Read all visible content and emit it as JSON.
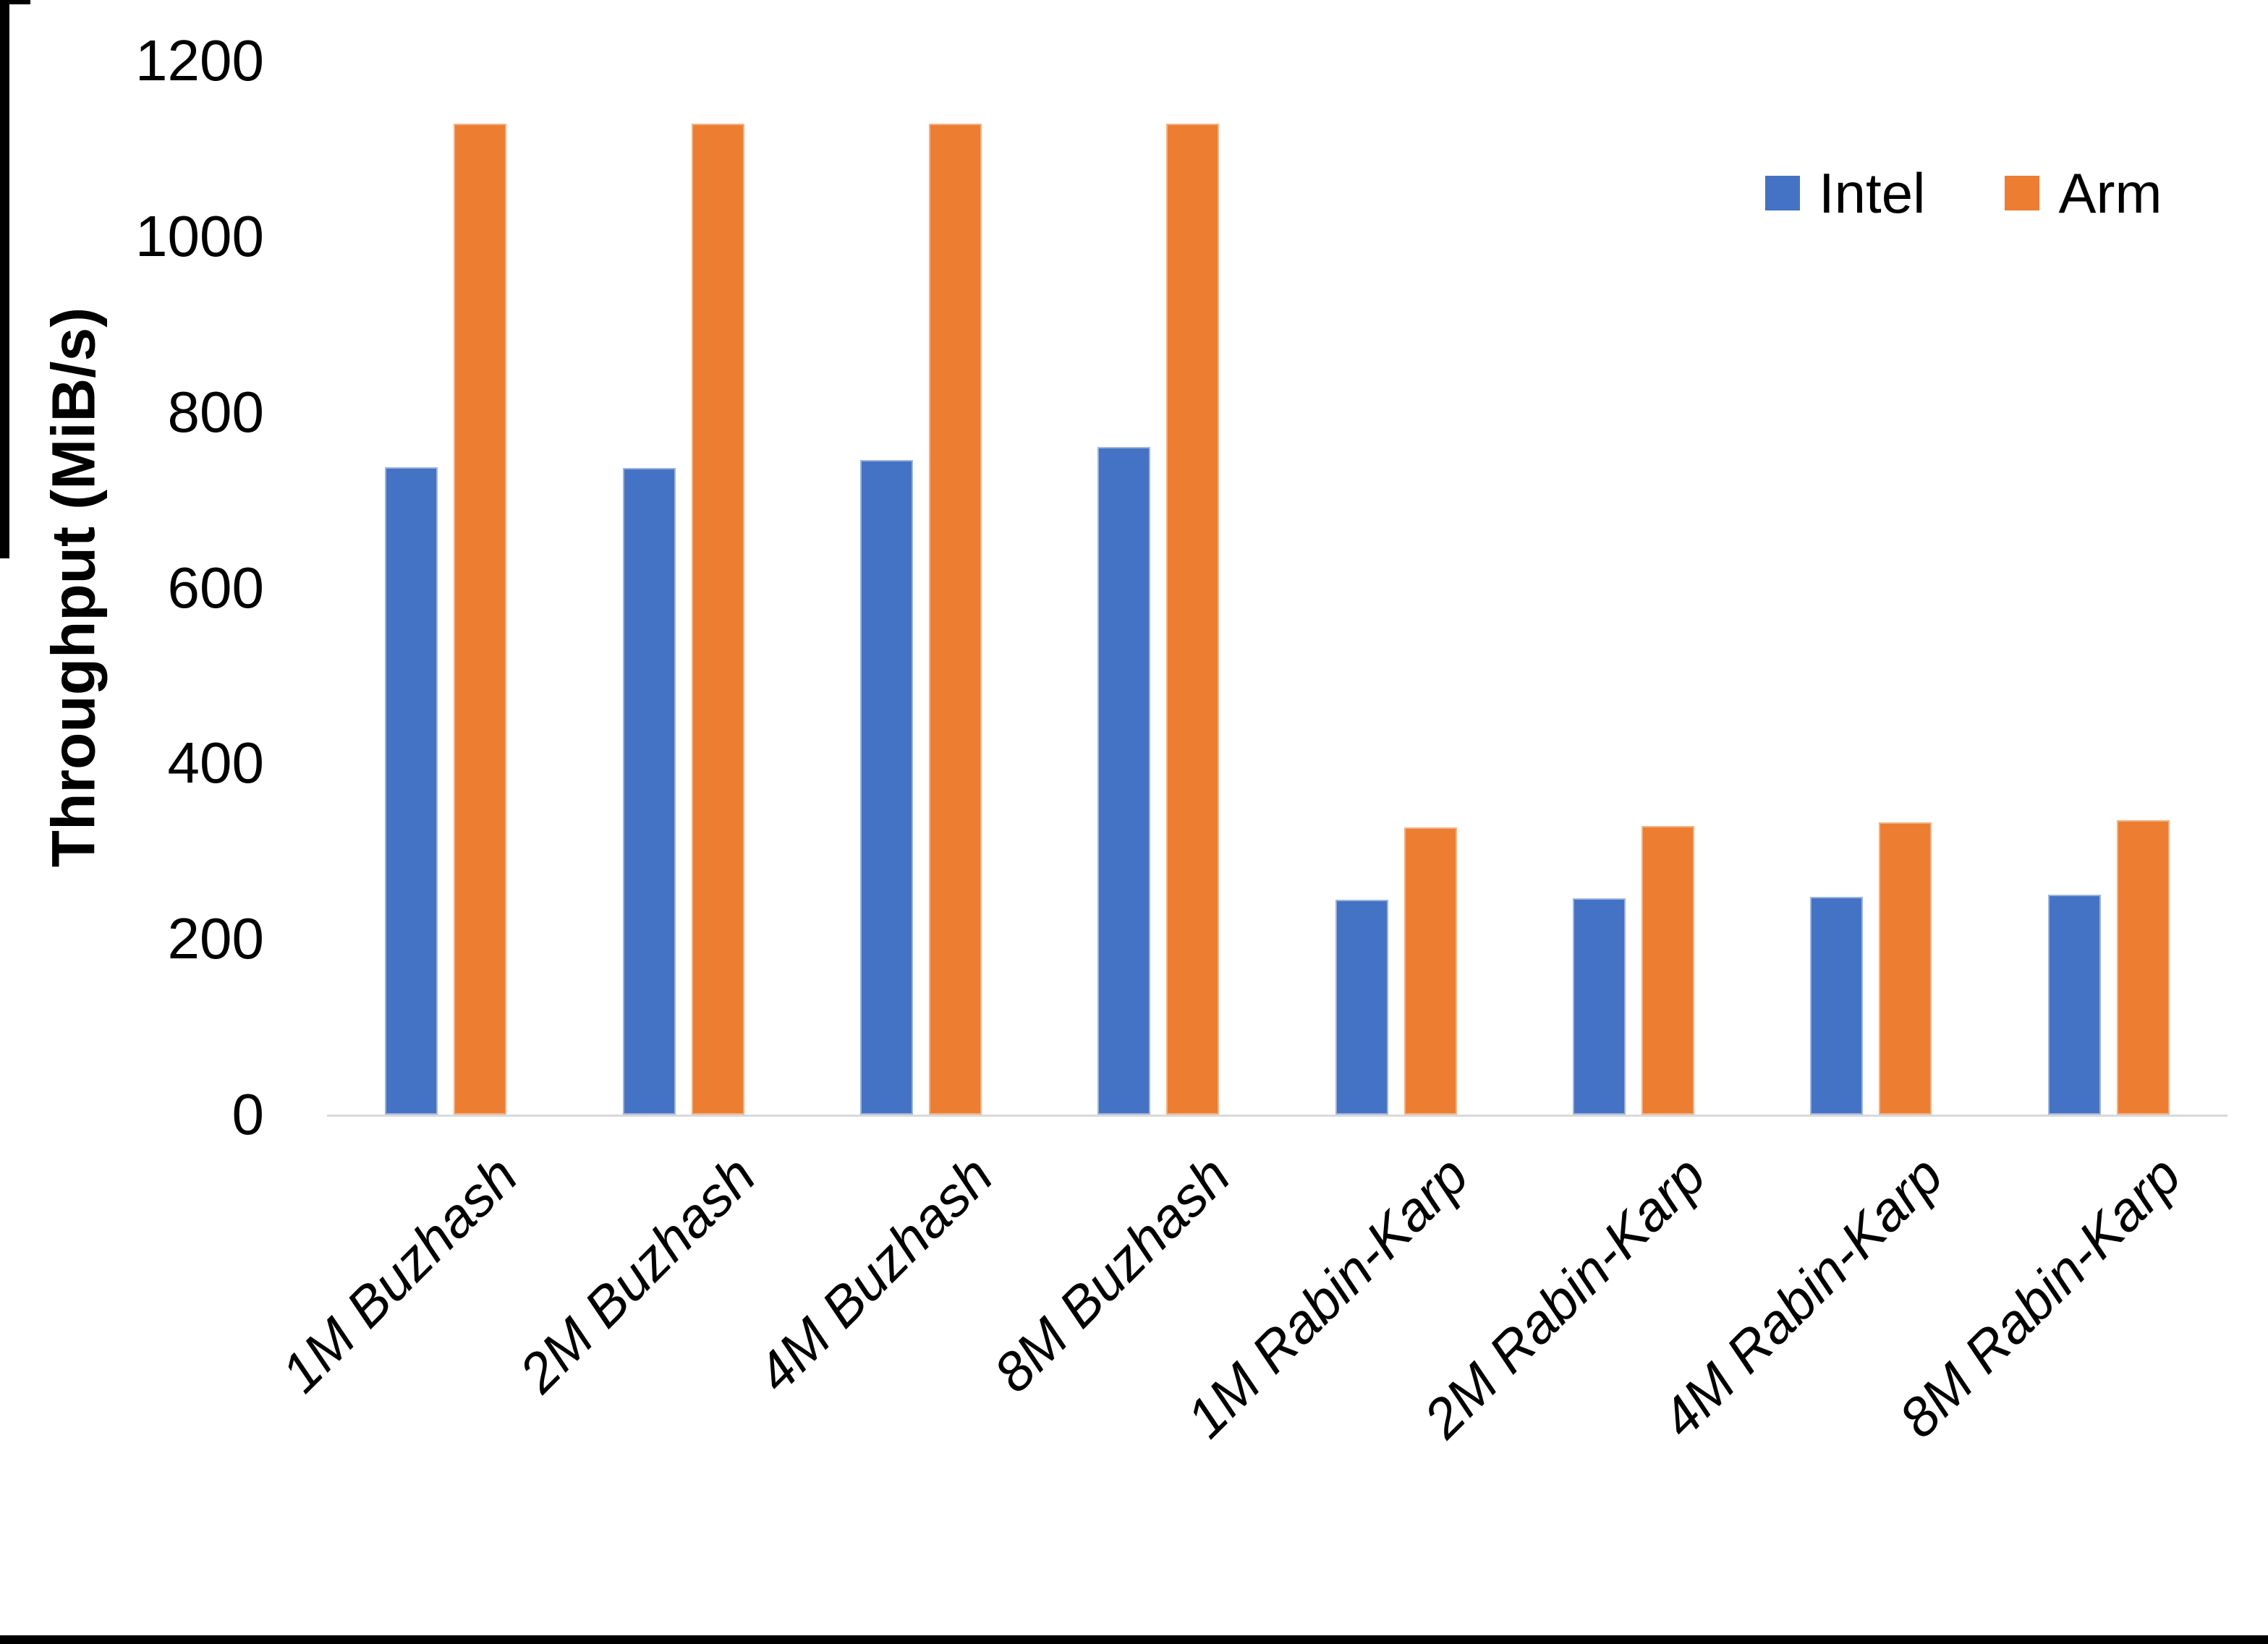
{
  "chart_data": {
    "type": "bar",
    "title": "",
    "xlabel": "",
    "ylabel": "Throughput (MiB/s)",
    "ylim": [
      0,
      1200
    ],
    "yticks": [
      0,
      200,
      400,
      600,
      800,
      1000,
      1200
    ],
    "grid": false,
    "legend_position": "top-right",
    "axis_line_color": "#d9d9d9",
    "categories": [
      "1M Buzhash",
      "2M Buzhash",
      "4M Buzhash",
      "8M Buzhash",
      "1M Rabin-Karp",
      "2M Rabin-Karp",
      "4M Rabin-Karp",
      "8M Rabin-Karp"
    ],
    "series": [
      {
        "name": "Intel",
        "color": "#4472C4",
        "edge_color": "#9DB3DF",
        "values": [
          737,
          736,
          745,
          760,
          245,
          246,
          248,
          250
        ]
      },
      {
        "name": "Arm",
        "color": "#ED7D31",
        "edge_color": "#F4B183",
        "values": [
          1128,
          1128,
          1128,
          1128,
          327,
          329,
          333,
          335
        ]
      }
    ]
  }
}
